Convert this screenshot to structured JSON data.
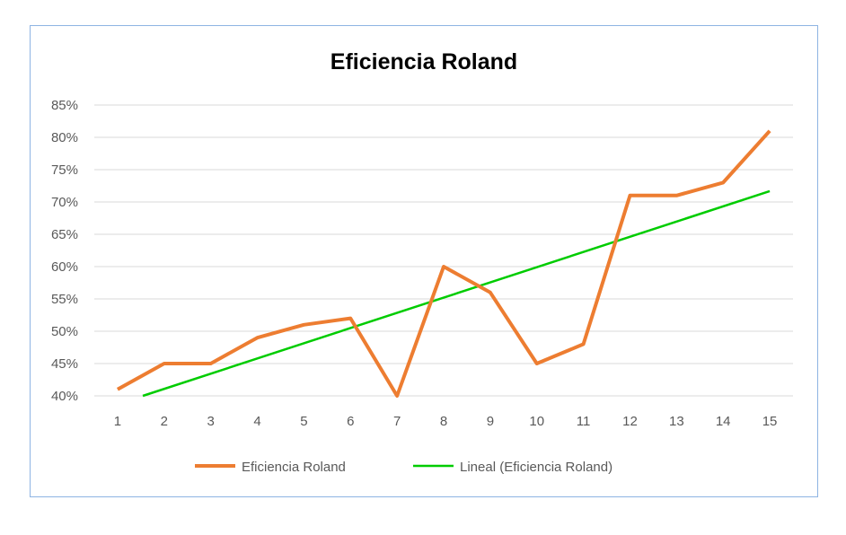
{
  "chart_data": {
    "type": "line",
    "title": "Eficiencia Roland",
    "xlabel": "",
    "ylabel": "",
    "categories": [
      "1",
      "2",
      "3",
      "4",
      "5",
      "6",
      "7",
      "8",
      "9",
      "10",
      "11",
      "12",
      "13",
      "14",
      "15"
    ],
    "series": [
      {
        "name": "Eficiencia Roland",
        "values": [
          41,
          45,
          45,
          49,
          51,
          52,
          40,
          60,
          56,
          45,
          48,
          71,
          71,
          73,
          81
        ],
        "color": "#ed7d31"
      },
      {
        "name": "Lineal (Eficiencia Roland)",
        "type": "linear-trendline",
        "color": "#00cc00"
      }
    ],
    "ylim": [
      40,
      85
    ],
    "yticks": [
      "40%",
      "45%",
      "50%",
      "55%",
      "60%",
      "65%",
      "70%",
      "75%",
      "80%",
      "85%"
    ],
    "grid": true,
    "legend": "bottom"
  }
}
